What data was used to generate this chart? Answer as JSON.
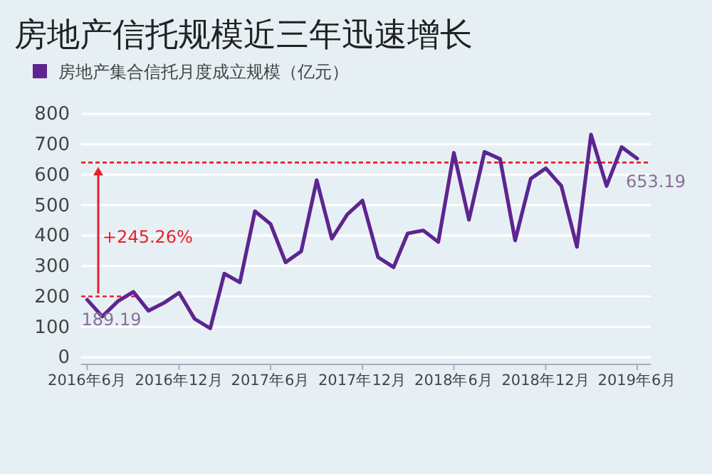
{
  "chart_data": {
    "type": "line",
    "title": "房地产信托规模近三年迅速增长",
    "x": [
      "2016-06",
      "2016-07",
      "2016-08",
      "2016-09",
      "2016-10",
      "2016-11",
      "2016-12",
      "2017-01",
      "2017-02",
      "2017-03",
      "2017-04",
      "2017-05",
      "2017-06",
      "2017-07",
      "2017-08",
      "2017-09",
      "2017-10",
      "2017-11",
      "2017-12",
      "2018-01",
      "2018-02",
      "2018-03",
      "2018-04",
      "2018-05",
      "2018-06",
      "2018-07",
      "2018-08",
      "2018-09",
      "2018-10",
      "2018-11",
      "2018-12",
      "2019-01",
      "2019-02",
      "2019-03",
      "2019-04",
      "2019-05",
      "2019-06"
    ],
    "series": [
      {
        "name": "房地产集合信托月度成立规模（亿元）",
        "color": "#5e2590",
        "values": [
          189.19,
          134,
          184,
          215,
          153,
          179,
          212,
          126,
          95,
          275,
          246,
          480,
          438,
          312,
          348,
          582,
          390,
          470,
          515,
          329,
          296,
          407,
          417,
          379,
          672,
          452,
          675,
          652,
          384,
          587,
          621,
          563,
          363,
          732,
          563,
          691,
          653.19
        ],
        "value_labels": [
          "189.19",
          null,
          null,
          null,
          null,
          null,
          null,
          null,
          null,
          null,
          null,
          null,
          null,
          null,
          null,
          null,
          null,
          null,
          null,
          null,
          null,
          null,
          null,
          null,
          null,
          null,
          null,
          null,
          null,
          null,
          null,
          null,
          null,
          null,
          null,
          null,
          "653.19"
        ]
      }
    ],
    "xlim": [
      "2016-05-20",
      "2019-06-28"
    ],
    "xticks": [
      {
        "value": "2016-06",
        "label": "2016年6月"
      },
      {
        "value": "2016-12",
        "label": "2016年12月"
      },
      {
        "value": "2017-06",
        "label": "2017年6月"
      },
      {
        "value": "2017-12",
        "label": "2017年12月"
      },
      {
        "value": "2018-06",
        "label": "2018年6月"
      },
      {
        "value": "2018-12",
        "label": "2018年12月"
      },
      {
        "value": "2019-06",
        "label": "2019年6月"
      }
    ],
    "ylim": [
      0,
      800
    ],
    "yticks": [
      0,
      100,
      200,
      300,
      400,
      500,
      600,
      700,
      800
    ],
    "grid": "y",
    "legend": "top left",
    "marker": "none",
    "line_style": "solid",
    "ref_lines": [
      {
        "axis": "y",
        "value": 200,
        "color": "#e8202a",
        "line_style": "dotted"
      },
      {
        "axis": "y",
        "value": 640,
        "color": "#e8202a",
        "line_style": "dotted"
      }
    ],
    "annotations": [
      "+245.26%"
    ]
  }
}
